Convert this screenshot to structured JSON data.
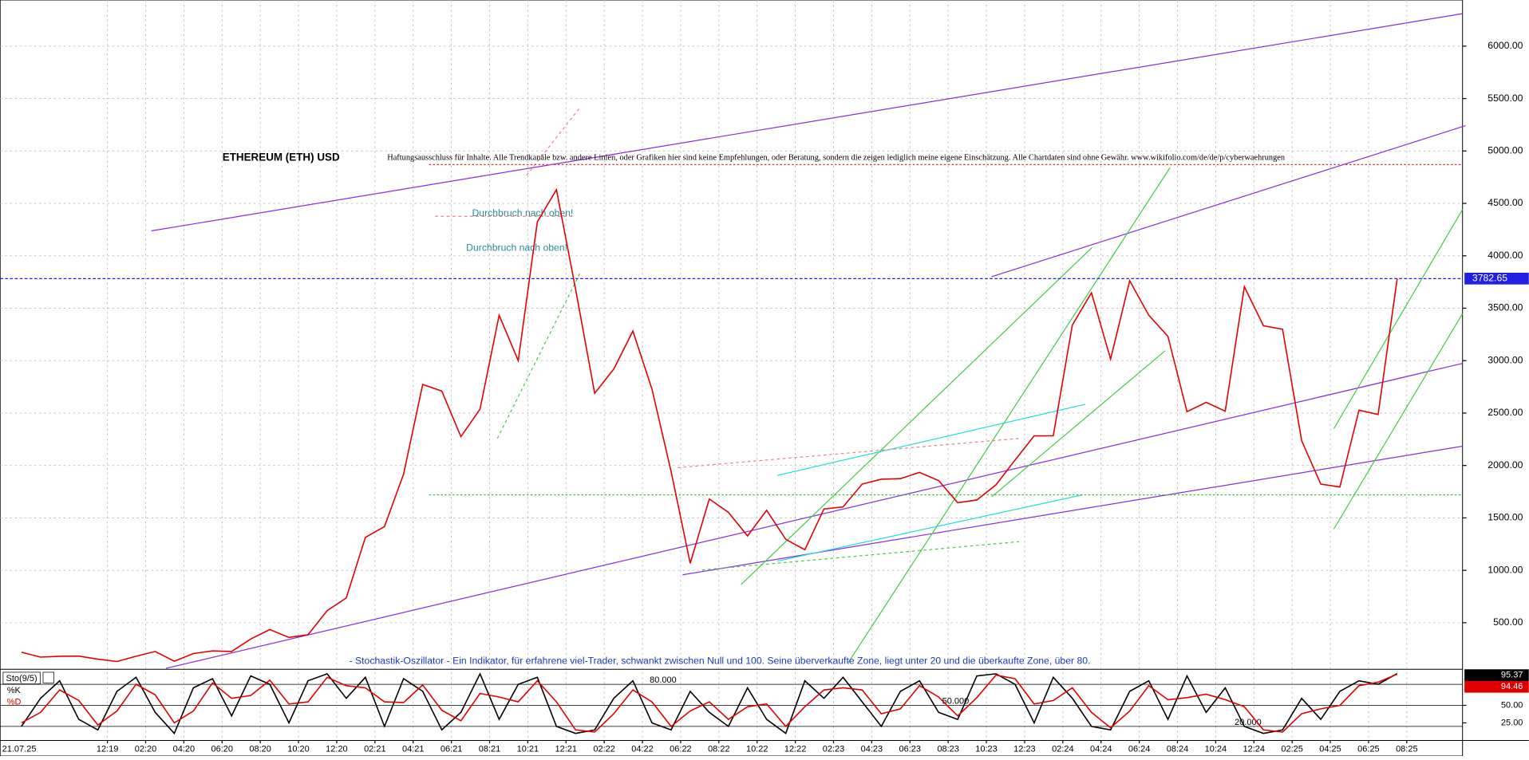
{
  "chart_data": {
    "type": "line",
    "title": "ETHEREUM (ETH) USD",
    "subtitle": "Haftungsausschluss für Inhalte. Alle Trendkanäle bzw. andere Linien, oder Grafiken hier sind keine Empfehlungen, oder Beratung, sondern die zeigen lediglich meine eigene Einschätzung. Alle Chartdaten sind ohne Gewähr. www.wikifolio.com/de/de/p/cyberwaehrungen",
    "annotations": [
      "Durchbruch nach oben!",
      "Durchbruch nach oben!",
      "- Stochastik-Oszillator - Ein Indikator, für erfahrene viel-Trader, schwankt zwischen Null und 100. Seine überverkaufte Zone, liegt unter 20 und die überkaufte Zone, über 80."
    ],
    "x": [
      "2019-07",
      "2019-08",
      "2019-09",
      "2019-10",
      "2019-11",
      "2019-12",
      "2020-01",
      "2020-02",
      "2020-03",
      "2020-04",
      "2020-05",
      "2020-06",
      "2020-07",
      "2020-08",
      "2020-09",
      "2020-10",
      "2020-11",
      "2020-12",
      "2021-01",
      "2021-02",
      "2021-03",
      "2021-04",
      "2021-05",
      "2021-06",
      "2021-07",
      "2021-08",
      "2021-09",
      "2021-10",
      "2021-11",
      "2021-12",
      "2022-01",
      "2022-02",
      "2022-03",
      "2022-04",
      "2022-05",
      "2022-06",
      "2022-07",
      "2022-08",
      "2022-09",
      "2022-10",
      "2022-11",
      "2022-12",
      "2023-01",
      "2023-02",
      "2023-03",
      "2023-04",
      "2023-05",
      "2023-06",
      "2023-07",
      "2023-08",
      "2023-09",
      "2023-10",
      "2023-11",
      "2023-12",
      "2024-01",
      "2024-02",
      "2024-03",
      "2024-04",
      "2024-05",
      "2024-06",
      "2024-07",
      "2024-08",
      "2024-09",
      "2024-10",
      "2024-11",
      "2024-12",
      "2025-01",
      "2025-02",
      "2025-03",
      "2025-04",
      "2025-05",
      "2025-06",
      "2025-07"
    ],
    "series": [
      {
        "name": "ETHEREUM (ETH) USD",
        "color": "#e00000",
        "values": [
          218,
          172,
          180,
          182,
          152,
          130,
          180,
          226,
          133,
          206,
          231,
          226,
          345,
          435,
          360,
          386,
          615,
          737,
          1314,
          1417,
          1918,
          2773,
          2710,
          2275,
          2537,
          3433,
          3001,
          4324,
          4631,
          3683,
          2688,
          2920,
          3282,
          2727,
          1942,
          1067,
          1680,
          1553,
          1328,
          1572,
          1295,
          1196,
          1585,
          1605,
          1822,
          1869,
          1874,
          1934,
          1856,
          1645,
          1671,
          1815,
          2052,
          2282,
          2283,
          3340,
          3647,
          3015,
          3762,
          3433,
          3232,
          2513,
          2602,
          2518,
          3705,
          3332,
          3300,
          2237,
          1822,
          1794,
          2528,
          2486,
          3782.65
        ]
      }
    ],
    "ylim": [
      65,
      6440
    ],
    "yticks": [
      {
        "value": 500,
        "label": "500.00"
      },
      {
        "value": 1000,
        "label": "1000.00"
      },
      {
        "value": 1500,
        "label": "1500.00"
      },
      {
        "value": 2000,
        "label": "2000.00"
      },
      {
        "value": 2500,
        "label": "2500.00"
      },
      {
        "value": 3000,
        "label": "3000.00"
      },
      {
        "value": 3500,
        "label": "3500.00"
      },
      {
        "value": 4000,
        "label": "4000.00"
      },
      {
        "value": 4500,
        "label": "4500.00"
      },
      {
        "value": 5000,
        "label": "5000.00"
      },
      {
        "value": 5500,
        "label": "5500.00"
      },
      {
        "value": 6000,
        "label": "6000.00"
      }
    ],
    "xticks": [
      {
        "value": "2019-12",
        "label": "12:19"
      },
      {
        "value": "2020-02",
        "label": "02:20"
      },
      {
        "value": "2020-04",
        "label": "04:20"
      },
      {
        "value": "2020-06",
        "label": "06:20"
      },
      {
        "value": "2020-08",
        "label": "08:20"
      },
      {
        "value": "2020-10",
        "label": "10:20"
      },
      {
        "value": "2020-12",
        "label": "12:20"
      },
      {
        "value": "2021-02",
        "label": "02:21"
      },
      {
        "value": "2021-04",
        "label": "04:21"
      },
      {
        "value": "2021-06",
        "label": "06:21"
      },
      {
        "value": "2021-08",
        "label": "08:21"
      },
      {
        "value": "2021-10",
        "label": "10:21"
      },
      {
        "value": "2021-12",
        "label": "12:21"
      },
      {
        "value": "2022-02",
        "label": "02:22"
      },
      {
        "value": "2022-04",
        "label": "04:22"
      },
      {
        "value": "2022-06",
        "label": "06:22"
      },
      {
        "value": "2022-08",
        "label": "08:22"
      },
      {
        "value": "2022-10",
        "label": "10:22"
      },
      {
        "value": "2022-12",
        "label": "12:22"
      },
      {
        "value": "2023-02",
        "label": "02:23"
      },
      {
        "value": "2023-04",
        "label": "04:23"
      },
      {
        "value": "2023-06",
        "label": "06:23"
      },
      {
        "value": "2023-08",
        "label": "08:23"
      },
      {
        "value": "2023-10",
        "label": "10:23"
      },
      {
        "value": "2023-12",
        "label": "12:23"
      },
      {
        "value": "2024-02",
        "label": "02:24"
      },
      {
        "value": "2024-04",
        "label": "04:24"
      },
      {
        "value": "2024-06",
        "label": "06:24"
      },
      {
        "value": "2024-08",
        "label": "08:24"
      },
      {
        "value": "2024-10",
        "label": "10:24"
      },
      {
        "value": "2024-12",
        "label": "12:24"
      },
      {
        "value": "2025-02",
        "label": "02:25"
      },
      {
        "value": "2025-04",
        "label": "04:25"
      },
      {
        "value": "2025-06",
        "label": "06:25"
      },
      {
        "value": "2025-08",
        "label": "08:25"
      }
    ],
    "x_start_label": "21.07.25",
    "hlines": [
      {
        "value": 4870,
        "color": "#e03030"
      },
      {
        "value": 1720,
        "color": "#30c030"
      }
    ],
    "grid": true,
    "indicator": {
      "type": "line",
      "title": "Sto(9/5)",
      "ylim": [
        0,
        100
      ],
      "yticks": [
        {
          "value": 25,
          "label": "25.00"
        },
        {
          "value": 50,
          "label": "50.00"
        }
      ],
      "levels": [
        {
          "value": 80,
          "label": "80.000"
        },
        {
          "value": 50,
          "label": "50.000"
        },
        {
          "value": 20,
          "label": "20.000"
        }
      ],
      "series": [
        {
          "name": "%K",
          "color": "#000000",
          "values": [
            20,
            60,
            85,
            30,
            15,
            70,
            90,
            40,
            10,
            75,
            88,
            35,
            92,
            80,
            25,
            85,
            95,
            60,
            90,
            20,
            88,
            70,
            15,
            40,
            95,
            30,
            80,
            90,
            20,
            10,
            15,
            60,
            85,
            25,
            15,
            70,
            40,
            20,
            75,
            30,
            10,
            85,
            60,
            90,
            55,
            20,
            70,
            85,
            40,
            30,
            92,
            95,
            80,
            25,
            90,
            60,
            20,
            15,
            70,
            85,
            30,
            92,
            40,
            75,
            20,
            10,
            15,
            60,
            30,
            70,
            85,
            80,
            95.37
          ]
        },
        {
          "name": "%D",
          "color": "#e00000",
          "values": [
            25,
            40,
            72,
            57,
            22,
            42,
            80,
            65,
            25,
            42,
            82,
            60,
            64,
            86,
            52,
            55,
            90,
            78,
            75,
            55,
            54,
            79,
            43,
            28,
            67,
            62,
            55,
            85,
            55,
            15,
            12,
            38,
            72,
            55,
            20,
            42,
            55,
            30,
            48,
            52,
            20,
            48,
            72,
            75,
            72,
            38,
            45,
            78,
            62,
            35,
            61,
            93,
            88,
            52,
            57,
            75,
            40,
            18,
            42,
            78,
            58,
            61,
            66,
            58,
            48,
            15,
            12,
            38,
            45,
            50,
            78,
            83,
            94.46
          ]
        }
      ]
    }
  }
}
